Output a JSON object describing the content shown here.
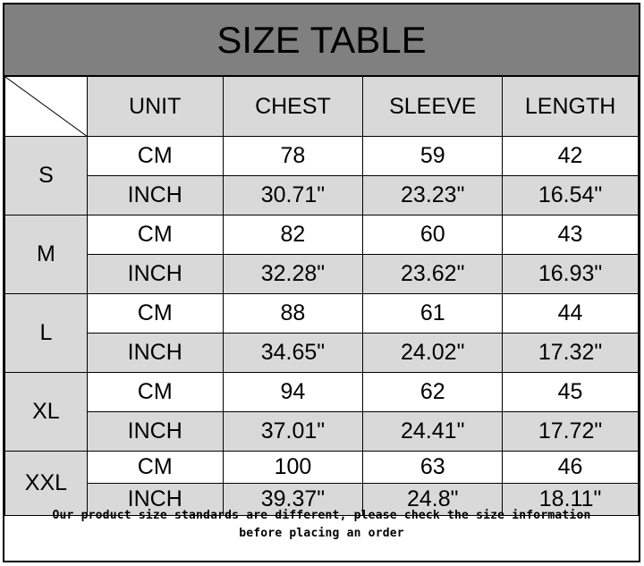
{
  "title": "SIZE TABLE",
  "headers": [
    "UNIT",
    "CHEST",
    "SLEEVE",
    "LENGTH"
  ],
  "rows": [
    {
      "size": "S",
      "cm": {
        "unit": "CM",
        "chest": "78",
        "sleeve": "59",
        "length": "42"
      },
      "inch": {
        "unit": "INCH",
        "chest": "30.71\"",
        "sleeve": "23.23\"",
        "length": "16.54\""
      }
    },
    {
      "size": "M",
      "cm": {
        "unit": "CM",
        "chest": "82",
        "sleeve": "60",
        "length": "43"
      },
      "inch": {
        "unit": "INCH",
        "chest": "32.28\"",
        "sleeve": "23.62\"",
        "length": "16.93\""
      }
    },
    {
      "size": "L",
      "cm": {
        "unit": "CM",
        "chest": "88",
        "sleeve": "61",
        "length": "44"
      },
      "inch": {
        "unit": "INCH",
        "chest": "34.65\"",
        "sleeve": "24.02\"",
        "length": "17.32\""
      }
    },
    {
      "size": "XL",
      "cm": {
        "unit": "CM",
        "chest": "94",
        "sleeve": "62",
        "length": "45"
      },
      "inch": {
        "unit": "INCH",
        "chest": "37.01\"",
        "sleeve": "24.41\"",
        "length": "17.72\""
      }
    },
    {
      "size": "XXL",
      "cm": {
        "unit": "CM",
        "chest": "100",
        "sleeve": "63",
        "length": "46"
      },
      "inch": {
        "unit": "INCH",
        "chest": "39.37\"",
        "sleeve": "24.8\"",
        "length": "18.11\""
      }
    }
  ],
  "footer": {
    "line1": "Our product size standards are different, please check the size information",
    "line2": "before placing an order"
  },
  "colors": {
    "title_bg": "#808080",
    "header_bg": "#d9d9d9"
  }
}
